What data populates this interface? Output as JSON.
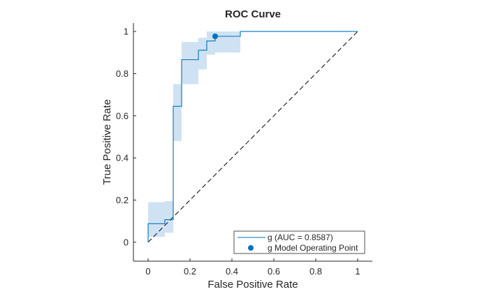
{
  "chart_data": {
    "type": "line",
    "title": "ROC Curve",
    "xlabel": "False Positive Rate",
    "ylabel": "True Positive Rate",
    "xlim": [
      -0.07,
      1.07
    ],
    "ylim": [
      -0.09,
      1.04
    ],
    "xticks": [
      0,
      0.2,
      0.4,
      0.6,
      0.8,
      1
    ],
    "yticks": [
      0,
      0.2,
      0.4,
      0.6,
      0.8,
      1
    ],
    "xtick_labels": [
      "0",
      "0.2",
      "0.4",
      "0.6",
      "0.8",
      "1"
    ],
    "ytick_labels": [
      "0",
      "0.2",
      "0.4",
      "0.6",
      "0.8",
      "1"
    ],
    "grid": false,
    "legend_position": "bottom-right",
    "series": [
      {
        "name": "g (AUC = 0.8587)",
        "color": "#0072BD",
        "kind": "roc-step",
        "points": [
          [
            0,
            0
          ],
          [
            0,
            0.088
          ],
          [
            0.08,
            0.088
          ],
          [
            0.08,
            0.107
          ],
          [
            0.12,
            0.107
          ],
          [
            0.12,
            0.645
          ],
          [
            0.16,
            0.645
          ],
          [
            0.16,
            0.866
          ],
          [
            0.24,
            0.866
          ],
          [
            0.24,
            0.911
          ],
          [
            0.28,
            0.911
          ],
          [
            0.28,
            0.955
          ],
          [
            0.32,
            0.955
          ],
          [
            0.32,
            0.977
          ],
          [
            0.44,
            0.977
          ],
          [
            0.44,
            1
          ],
          [
            1,
            1
          ]
        ],
        "confidence_bands": [
          {
            "x": [
              0,
              0.08
            ],
            "y": [
              0.025,
              0.19
            ]
          },
          {
            "x": [
              0.08,
              0.12
            ],
            "y": [
              0.045,
              0.195
            ]
          },
          {
            "x": [
              0.12,
              0.16
            ],
            "y": [
              0.48,
              0.75
            ]
          },
          {
            "x": [
              0.16,
              0.24
            ],
            "y": [
              0.75,
              0.95
            ]
          },
          {
            "x": [
              0.24,
              0.28
            ],
            "y": [
              0.82,
              0.97
            ]
          },
          {
            "x": [
              0.28,
              0.32
            ],
            "y": [
              0.89,
              1.0
            ]
          },
          {
            "x": [
              0.32,
              0.44
            ],
            "y": [
              0.9,
              1.0
            ]
          }
        ],
        "band_color": "#cfe2f3"
      },
      {
        "name": "g Model Operating Point",
        "color": "#0072BD",
        "kind": "marker",
        "x": 0.32,
        "y": 0.977
      },
      {
        "name": "",
        "kind": "reference-diagonal",
        "color": "#000000",
        "dash": "dashed",
        "points": [
          [
            0,
            0
          ],
          [
            1,
            1
          ]
        ]
      }
    ]
  }
}
